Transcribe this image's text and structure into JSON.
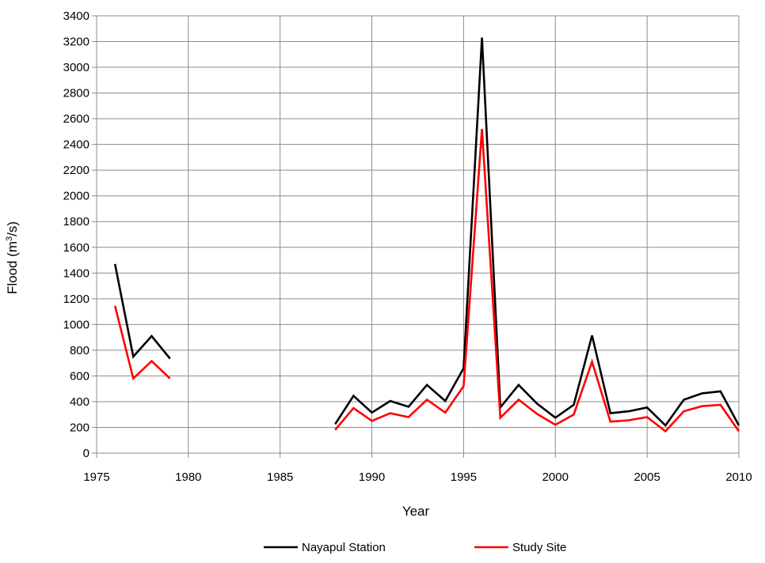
{
  "chart_data": {
    "type": "line",
    "title": "",
    "xlabel": "Year",
    "ylabel_main": "Flood (m",
    "ylabel_sup": "3",
    "ylabel_tail": "/s)",
    "xlim": [
      1975,
      2010
    ],
    "ylim": [
      0,
      3400
    ],
    "xticks": [
      1975,
      1980,
      1985,
      1990,
      1995,
      2000,
      2005,
      2010
    ],
    "yticks": [
      0,
      200,
      400,
      600,
      800,
      1000,
      1200,
      1400,
      1600,
      1800,
      2000,
      2200,
      2400,
      2600,
      2800,
      3000,
      3200,
      3400
    ],
    "grid": true,
    "legend_position": "bottom",
    "series": [
      {
        "name": "Nayapul Station",
        "color": "#000000",
        "segments": [
          [
            [
              1976,
              1470
            ],
            [
              1977,
              750
            ],
            [
              1978,
              910
            ],
            [
              1979,
              735
            ]
          ],
          [
            [
              1988,
              225
            ],
            [
              1989,
              445
            ],
            [
              1990,
              315
            ],
            [
              1991,
              405
            ],
            [
              1992,
              360
            ],
            [
              1993,
              530
            ],
            [
              1994,
              405
            ],
            [
              1995,
              660
            ],
            [
              1996,
              3230
            ],
            [
              1997,
              355
            ],
            [
              1998,
              530
            ],
            [
              1999,
              385
            ],
            [
              2000,
              275
            ],
            [
              2001,
              375
            ],
            [
              2002,
              915
            ],
            [
              2003,
              310
            ],
            [
              2004,
              325
            ],
            [
              2005,
              355
            ],
            [
              2006,
              215
            ],
            [
              2007,
              415
            ],
            [
              2008,
              465
            ],
            [
              2009,
              480
            ],
            [
              2010,
              215
            ]
          ]
        ]
      },
      {
        "name": "Study Site",
        "color": "#ff0000",
        "segments": [
          [
            [
              1976,
              1145
            ],
            [
              1977,
              580
            ],
            [
              1978,
              715
            ],
            [
              1979,
              580
            ]
          ],
          [
            [
              1988,
              180
            ],
            [
              1989,
              350
            ],
            [
              1990,
              250
            ],
            [
              1991,
              310
            ],
            [
              1992,
              280
            ],
            [
              1993,
              415
            ],
            [
              1994,
              315
            ],
            [
              1995,
              520
            ],
            [
              1996,
              2520
            ],
            [
              1997,
              275
            ],
            [
              1998,
              415
            ],
            [
              1999,
              305
            ],
            [
              2000,
              220
            ],
            [
              2001,
              300
            ],
            [
              2002,
              710
            ],
            [
              2003,
              245
            ],
            [
              2004,
              255
            ],
            [
              2005,
              280
            ],
            [
              2006,
              170
            ],
            [
              2007,
              325
            ],
            [
              2008,
              365
            ],
            [
              2009,
              375
            ],
            [
              2010,
              170
            ]
          ]
        ]
      }
    ]
  }
}
